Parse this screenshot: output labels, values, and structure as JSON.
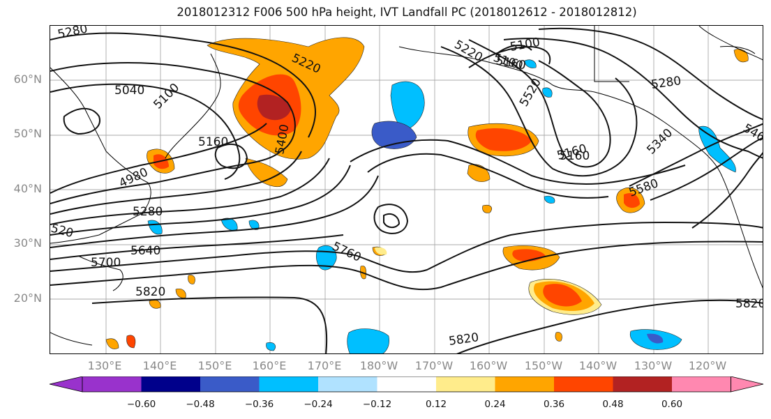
{
  "title": "2018012312 F006 500 hPa height, IVT Landfall PC (2018012612 - 2018012812)",
  "lat_labels": [
    "60°N",
    "50°N",
    "40°N",
    "30°N",
    "20°N"
  ],
  "lon_labels": [
    "130°E",
    "140°E",
    "150°E",
    "160°E",
    "170°E",
    "180°W",
    "170°W",
    "160°W",
    "150°W",
    "140°W",
    "130°W",
    "120°W"
  ],
  "contour_labels": [
    "5280",
    "5220",
    "5100",
    "5160",
    "5040",
    "5100",
    "5160",
    "4980",
    "5280",
    "520",
    "5640",
    "5700",
    "5820",
    "5400",
    "5760",
    "5220",
    "5100",
    "5160",
    "5280",
    "5520",
    "5160",
    "5340",
    "5580",
    "546",
    "5820",
    "5820"
  ],
  "colorbar": {
    "colors": [
      "#9932cc",
      "#00008b",
      "#3a5bc8",
      "#00bfff",
      "#b0e2ff",
      "#ffffff",
      "#ffec8b",
      "#ffa500",
      "#ff4500",
      "#b22222",
      "#ff88b0"
    ],
    "tick_labels": [
      "−0.60",
      "−0.48",
      "−0.36",
      "−0.24",
      "−0.12",
      "0.12",
      "0.24",
      "0.36",
      "0.48",
      "0.60"
    ]
  }
}
